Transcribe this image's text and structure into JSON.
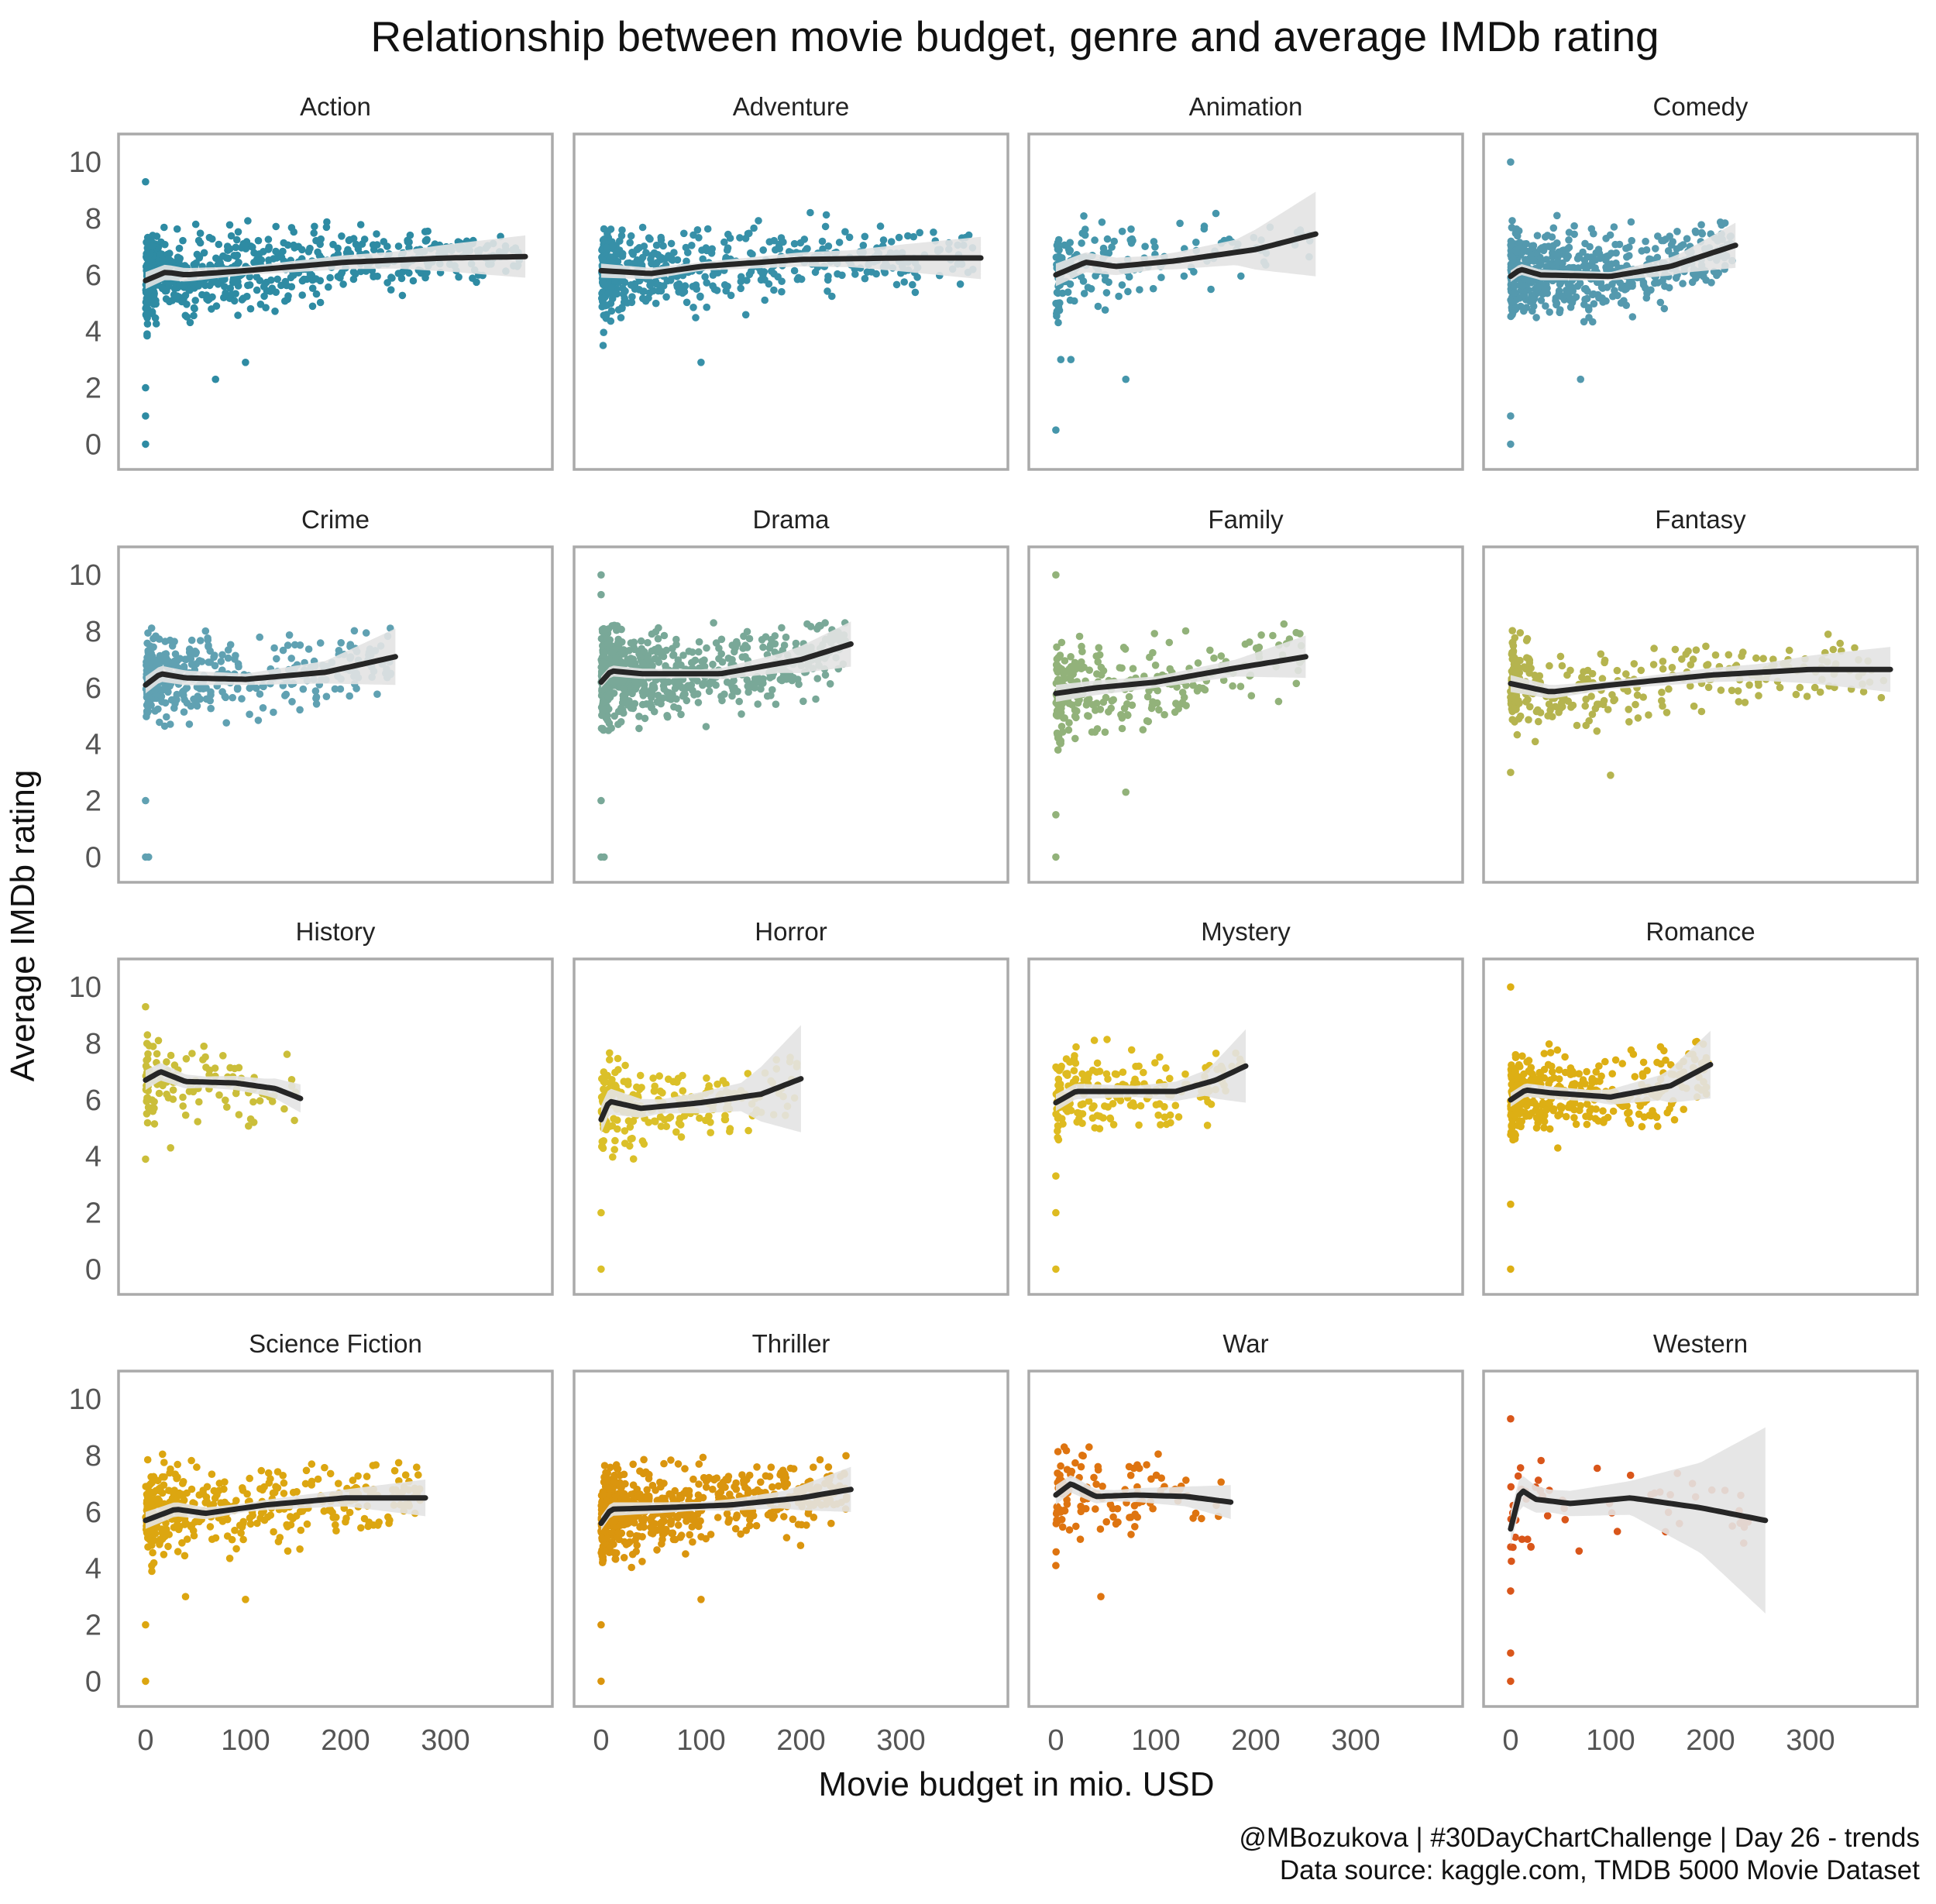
{
  "chart_data": {
    "type": "scatter",
    "title": "Relationship between movie budget, genre and average IMDb rating",
    "xlabel": "Movie budget in mio. USD",
    "ylabel": "Average IMDb rating",
    "caption": [
      "@MBozukova | #30DayChartChallenge | Day 26 - trends",
      "Data source: kaggle.com, TMDB 5000 Movie Dataset"
    ],
    "xlim": [
      -10,
      390
    ],
    "ylim": [
      -0.4,
      10.5
    ],
    "x_ticks": [
      0,
      100,
      200,
      300
    ],
    "y_ticks": [
      0,
      2,
      4,
      6,
      8,
      10
    ],
    "grid": false,
    "facets": [
      {
        "name": "Action",
        "color": "#2E8BA3",
        "n": 620,
        "xmax": 380,
        "smooth": [
          [
            0,
            5.8
          ],
          [
            20,
            6.1
          ],
          [
            40,
            6.0
          ],
          [
            100,
            6.15
          ],
          [
            200,
            6.45
          ],
          [
            300,
            6.6
          ],
          [
            380,
            6.65
          ]
        ],
        "band": [
          [
            0,
            0.3
          ],
          [
            100,
            0.15
          ],
          [
            250,
            0.3
          ],
          [
            380,
            0.75
          ]
        ],
        "outliers": [
          [
            0,
            9.3
          ],
          [
            0,
            2.0
          ],
          [
            0,
            1.0
          ],
          [
            0,
            0.0
          ],
          [
            70,
            2.3
          ],
          [
            100,
            2.9
          ]
        ]
      },
      {
        "name": "Adventure",
        "color": "#3790A8",
        "n": 480,
        "xmax": 380,
        "smooth": [
          [
            0,
            6.15
          ],
          [
            50,
            6.05
          ],
          [
            100,
            6.3
          ],
          [
            200,
            6.55
          ],
          [
            300,
            6.6
          ],
          [
            380,
            6.6
          ]
        ],
        "band": [
          [
            0,
            0.25
          ],
          [
            100,
            0.15
          ],
          [
            250,
            0.3
          ],
          [
            380,
            0.75
          ]
        ],
        "outliers": [
          [
            100,
            2.9
          ],
          [
            2,
            3.5
          ]
        ]
      },
      {
        "name": "Animation",
        "color": "#4596AB",
        "n": 170,
        "xmax": 260,
        "smooth": [
          [
            0,
            6.0
          ],
          [
            30,
            6.45
          ],
          [
            60,
            6.3
          ],
          [
            120,
            6.5
          ],
          [
            200,
            6.9
          ],
          [
            260,
            7.45
          ]
        ],
        "band": [
          [
            0,
            0.4
          ],
          [
            100,
            0.25
          ],
          [
            180,
            0.45
          ],
          [
            260,
            1.5
          ]
        ],
        "outliers": [
          [
            0,
            0.5
          ],
          [
            70,
            2.3
          ],
          [
            5,
            3.0
          ],
          [
            15,
            3.0
          ]
        ]
      },
      {
        "name": "Comedy",
        "color": "#5499AE",
        "n": 600,
        "xmax": 225,
        "smooth": [
          [
            0,
            5.95
          ],
          [
            10,
            6.2
          ],
          [
            30,
            6.0
          ],
          [
            100,
            5.95
          ],
          [
            160,
            6.3
          ],
          [
            225,
            7.05
          ]
        ],
        "band": [
          [
            0,
            0.2
          ],
          [
            100,
            0.15
          ],
          [
            170,
            0.35
          ],
          [
            225,
            0.8
          ]
        ],
        "outliers": [
          [
            0,
            10.0
          ],
          [
            0,
            0.0
          ],
          [
            0,
            1.0
          ],
          [
            70,
            2.3
          ]
        ]
      },
      {
        "name": "Crime",
        "color": "#60A1B2",
        "n": 350,
        "xmax": 250,
        "smooth": [
          [
            0,
            6.1
          ],
          [
            15,
            6.5
          ],
          [
            40,
            6.35
          ],
          [
            100,
            6.3
          ],
          [
            180,
            6.55
          ],
          [
            250,
            7.1
          ]
        ],
        "band": [
          [
            0,
            0.3
          ],
          [
            100,
            0.2
          ],
          [
            180,
            0.4
          ],
          [
            250,
            1.0
          ]
        ],
        "outliers": [
          [
            0,
            0.0
          ],
          [
            3,
            0.0
          ],
          [
            0,
            2.0
          ]
        ]
      },
      {
        "name": "Drama",
        "color": "#79A898",
        "n": 650,
        "xmax": 250,
        "smooth": [
          [
            0,
            6.2
          ],
          [
            10,
            6.6
          ],
          [
            40,
            6.5
          ],
          [
            120,
            6.5
          ],
          [
            200,
            7.0
          ],
          [
            250,
            7.55
          ]
        ],
        "band": [
          [
            0,
            0.2
          ],
          [
            100,
            0.15
          ],
          [
            180,
            0.35
          ],
          [
            250,
            0.8
          ]
        ],
        "outliers": [
          [
            0,
            10.0
          ],
          [
            0,
            9.3
          ],
          [
            0,
            0.0
          ],
          [
            3,
            0.0
          ],
          [
            0,
            2.0
          ]
        ]
      },
      {
        "name": "Family",
        "color": "#92B27A",
        "n": 280,
        "xmax": 250,
        "smooth": [
          [
            0,
            5.8
          ],
          [
            40,
            6.0
          ],
          [
            100,
            6.2
          ],
          [
            180,
            6.7
          ],
          [
            250,
            7.1
          ]
        ],
        "band": [
          [
            0,
            0.3
          ],
          [
            100,
            0.2
          ],
          [
            180,
            0.3
          ],
          [
            250,
            0.75
          ]
        ],
        "outliers": [
          [
            0,
            10.0
          ],
          [
            0,
            0.0
          ],
          [
            70,
            2.3
          ],
          [
            0,
            1.5
          ]
        ]
      },
      {
        "name": "Fantasy",
        "color": "#B5B44F",
        "n": 300,
        "xmax": 380,
        "smooth": [
          [
            0,
            6.15
          ],
          [
            40,
            5.85
          ],
          [
            100,
            6.1
          ],
          [
            200,
            6.45
          ],
          [
            300,
            6.65
          ],
          [
            380,
            6.65
          ]
        ],
        "band": [
          [
            0,
            0.3
          ],
          [
            100,
            0.15
          ],
          [
            250,
            0.3
          ],
          [
            380,
            0.8
          ]
        ],
        "outliers": [
          [
            100,
            2.9
          ],
          [
            0,
            3.0
          ]
        ]
      },
      {
        "name": "History",
        "color": "#CBBE3A",
        "n": 120,
        "xmax": 155,
        "smooth": [
          [
            0,
            6.7
          ],
          [
            15,
            7.0
          ],
          [
            40,
            6.65
          ],
          [
            90,
            6.6
          ],
          [
            130,
            6.4
          ],
          [
            155,
            6.05
          ]
        ],
        "band": [
          [
            0,
            0.35
          ],
          [
            60,
            0.2
          ],
          [
            120,
            0.3
          ],
          [
            155,
            0.5
          ]
        ],
        "outliers": [
          [
            0,
            9.3
          ],
          [
            0,
            3.9
          ],
          [
            25,
            4.3
          ]
        ]
      },
      {
        "name": "Horror",
        "color": "#DBC029",
        "n": 240,
        "xmax": 200,
        "smooth": [
          [
            0,
            5.3
          ],
          [
            8,
            5.95
          ],
          [
            40,
            5.7
          ],
          [
            100,
            5.9
          ],
          [
            160,
            6.2
          ],
          [
            200,
            6.75
          ]
        ],
        "band": [
          [
            0,
            0.5
          ],
          [
            60,
            0.25
          ],
          [
            140,
            0.5
          ],
          [
            200,
            1.9
          ]
        ],
        "outliers": [
          [
            0,
            0.0
          ],
          [
            0,
            2.0
          ]
        ]
      },
      {
        "name": "Mystery",
        "color": "#DEBB20",
        "n": 200,
        "xmax": 190,
        "smooth": [
          [
            0,
            5.9
          ],
          [
            20,
            6.3
          ],
          [
            60,
            6.3
          ],
          [
            120,
            6.3
          ],
          [
            160,
            6.7
          ],
          [
            190,
            7.2
          ]
        ],
        "band": [
          [
            0,
            0.3
          ],
          [
            80,
            0.2
          ],
          [
            150,
            0.45
          ],
          [
            190,
            1.3
          ]
        ],
        "outliers": [
          [
            0,
            0.0
          ],
          [
            0,
            2.0
          ],
          [
            0,
            3.3
          ]
        ]
      },
      {
        "name": "Romance",
        "color": "#DDAF14",
        "n": 380,
        "xmax": 200,
        "smooth": [
          [
            0,
            6.0
          ],
          [
            15,
            6.35
          ],
          [
            40,
            6.25
          ],
          [
            100,
            6.1
          ],
          [
            160,
            6.5
          ],
          [
            200,
            7.25
          ]
        ],
        "band": [
          [
            0,
            0.25
          ],
          [
            80,
            0.2
          ],
          [
            150,
            0.45
          ],
          [
            200,
            1.2
          ]
        ],
        "outliers": [
          [
            0,
            10.0
          ],
          [
            0,
            0.0
          ],
          [
            0,
            2.3
          ]
        ]
      },
      {
        "name": "Science Fiction",
        "color": "#DCA610",
        "n": 420,
        "xmax": 280,
        "smooth": [
          [
            0,
            5.7
          ],
          [
            30,
            6.1
          ],
          [
            60,
            5.95
          ],
          [
            120,
            6.25
          ],
          [
            200,
            6.5
          ],
          [
            280,
            6.5
          ]
        ],
        "band": [
          [
            0,
            0.3
          ],
          [
            100,
            0.15
          ],
          [
            200,
            0.3
          ],
          [
            280,
            0.65
          ]
        ],
        "outliers": [
          [
            0,
            0.0
          ],
          [
            0,
            2.0
          ],
          [
            100,
            2.9
          ],
          [
            40,
            3.0
          ]
        ]
      },
      {
        "name": "Thriller",
        "color": "#DA950E",
        "n": 620,
        "xmax": 250,
        "smooth": [
          [
            0,
            5.6
          ],
          [
            10,
            6.1
          ],
          [
            60,
            6.15
          ],
          [
            130,
            6.25
          ],
          [
            200,
            6.5
          ],
          [
            250,
            6.8
          ]
        ],
        "band": [
          [
            0,
            0.25
          ],
          [
            100,
            0.15
          ],
          [
            180,
            0.3
          ],
          [
            250,
            0.8
          ]
        ],
        "outliers": [
          [
            0,
            0.0
          ],
          [
            0,
            2.0
          ],
          [
            100,
            2.9
          ]
        ]
      },
      {
        "name": "War",
        "color": "#DE7410",
        "n": 120,
        "xmax": 175,
        "smooth": [
          [
            0,
            6.6
          ],
          [
            15,
            7.0
          ],
          [
            40,
            6.55
          ],
          [
            80,
            6.6
          ],
          [
            130,
            6.55
          ],
          [
            175,
            6.35
          ]
        ],
        "band": [
          [
            0,
            0.35
          ],
          [
            60,
            0.2
          ],
          [
            130,
            0.35
          ],
          [
            175,
            0.6
          ]
        ],
        "outliers": [
          [
            45,
            3.0
          ],
          [
            0,
            4.1
          ]
        ]
      },
      {
        "name": "Western",
        "color": "#D9561A",
        "n": 55,
        "xmax": 255,
        "smooth": [
          [
            0,
            5.4
          ],
          [
            10,
            6.8
          ],
          [
            25,
            6.45
          ],
          [
            60,
            6.3
          ],
          [
            120,
            6.5
          ],
          [
            190,
            6.15
          ],
          [
            255,
            5.7
          ]
        ],
        "band": [
          [
            0,
            0.6
          ],
          [
            40,
            0.4
          ],
          [
            120,
            0.6
          ],
          [
            190,
            1.6
          ],
          [
            255,
            3.3
          ]
        ],
        "outliers": [
          [
            0,
            9.3
          ],
          [
            0,
            1.0
          ],
          [
            0,
            0.0
          ],
          [
            155,
            5.3
          ],
          [
            0,
            3.2
          ]
        ]
      }
    ]
  }
}
